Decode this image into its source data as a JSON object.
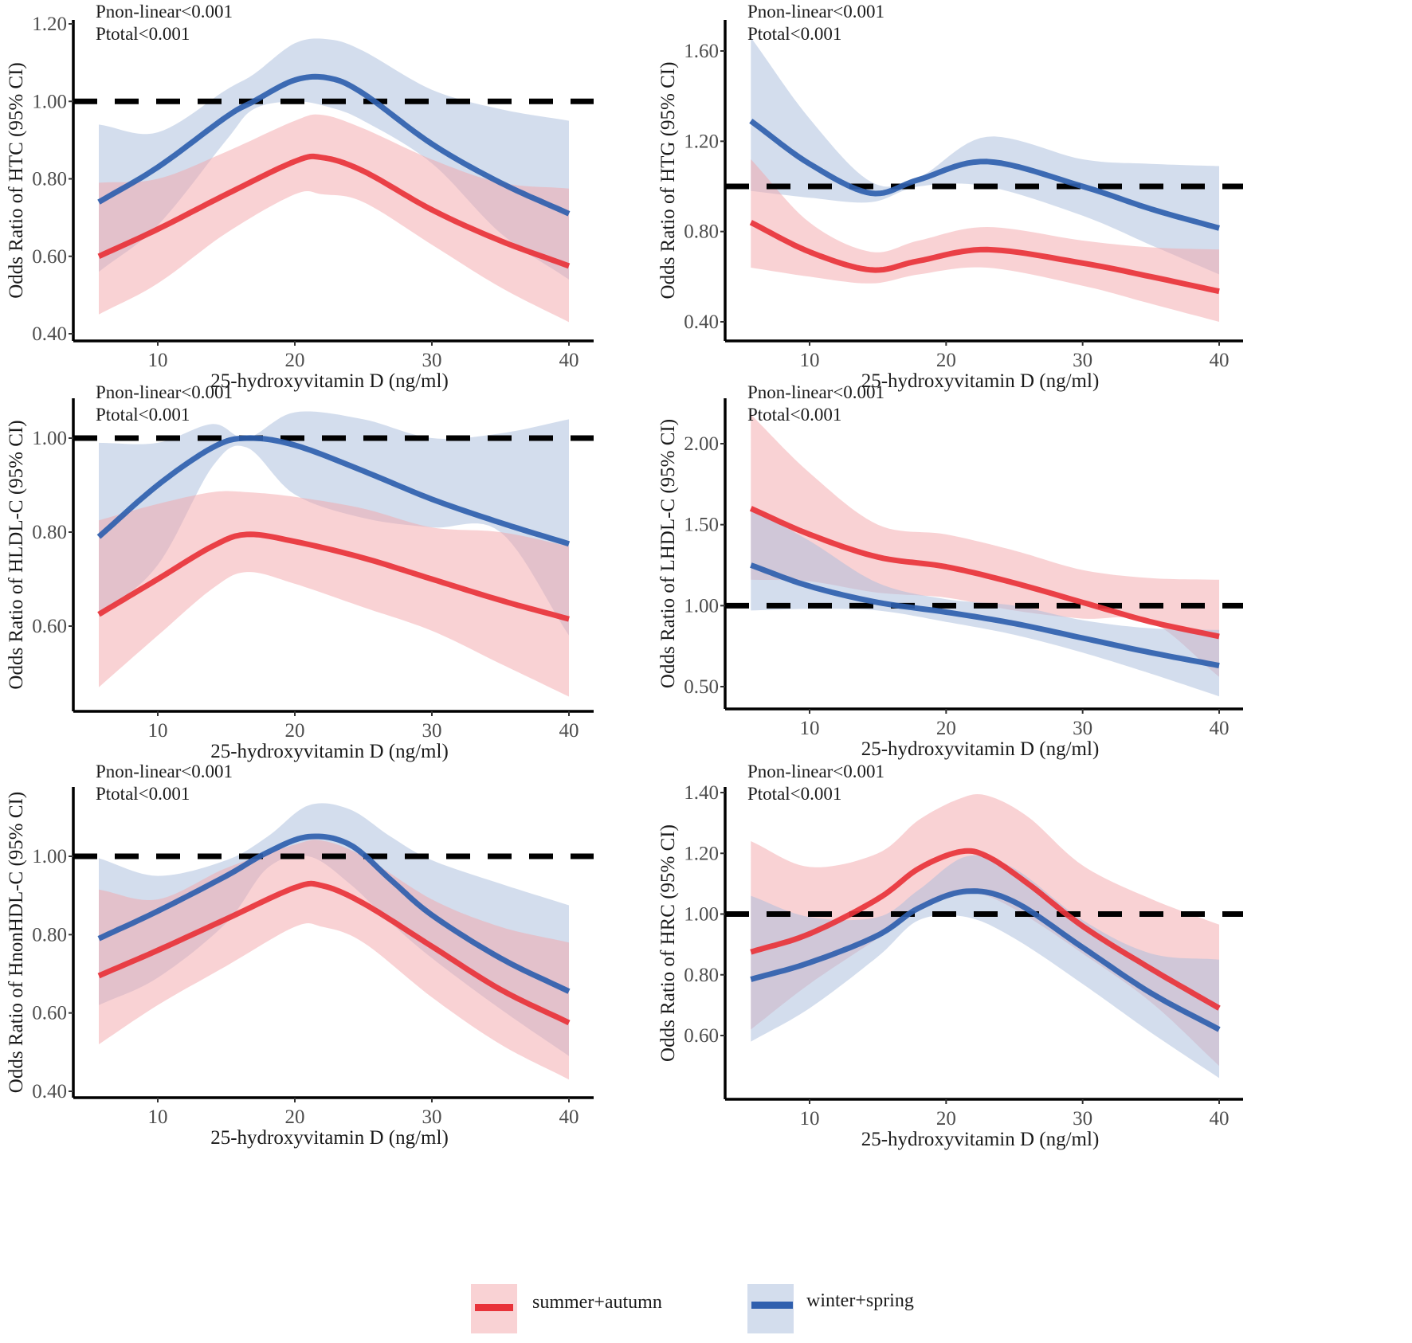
{
  "figure": {
    "legend": [
      {
        "key": "summer_autumn",
        "label": "summer+autumn",
        "line_color": "#e8333a",
        "band_color": "#f4a6aa",
        "band_opacity": 0.5
      },
      {
        "key": "winter_spring",
        "label": "winter+spring",
        "line_color": "#2f5fae",
        "band_color": "#a7bcdc",
        "band_opacity": 0.5
      }
    ]
  },
  "chart_data": [
    {
      "type": "line",
      "panel": "top-left",
      "title": "",
      "annotations": [
        "Pnon-linear<0.001",
        "Ptotal<0.001"
      ],
      "xlabel": "25-hydroxyvitamin D (ng/ml)",
      "ylabel": "Odds Ratio of HTC (95% CI)",
      "xticks": [
        10,
        20,
        30,
        40
      ],
      "yticks": [
        "0.40",
        "0.60",
        "0.80",
        "1.00",
        "1.20"
      ],
      "xlim": [
        4.2,
        41.8
      ],
      "ylim": [
        0.39,
        1.21
      ],
      "reference_line": 1.0,
      "series": [
        {
          "name": "winter+spring",
          "x": [
            5.7,
            10,
            15,
            17,
            20,
            22.5,
            25,
            30,
            35,
            40
          ],
          "y": [
            0.74,
            0.83,
            0.96,
            1.0,
            1.055,
            1.06,
            1.02,
            0.89,
            0.79,
            0.71
          ],
          "lower": [
            0.56,
            0.68,
            0.9,
            0.98,
            1.0,
            0.985,
            0.95,
            0.84,
            0.66,
            0.54
          ],
          "upper": [
            0.94,
            0.92,
            1.03,
            1.07,
            1.15,
            1.16,
            1.13,
            1.03,
            0.98,
            0.95
          ]
        },
        {
          "name": "summer+autumn",
          "x": [
            5.7,
            10,
            15,
            20,
            22,
            25,
            30,
            35,
            40
          ],
          "y": [
            0.6,
            0.67,
            0.76,
            0.845,
            0.855,
            0.82,
            0.72,
            0.64,
            0.575
          ],
          "lower": [
            0.45,
            0.53,
            0.66,
            0.76,
            0.76,
            0.74,
            0.63,
            0.52,
            0.43
          ],
          "upper": [
            0.79,
            0.8,
            0.87,
            0.95,
            0.965,
            0.93,
            0.85,
            0.79,
            0.775
          ]
        }
      ]
    },
    {
      "type": "line",
      "panel": "top-right",
      "title": "",
      "annotations": [
        "Pnon-linear<0.001",
        "Ptotal<0.001"
      ],
      "xlabel": "25-hydroxyvitamin D (ng/ml)",
      "ylabel": "Odds Ratio of HTG (95% CI)",
      "xticks": [
        10,
        20,
        30,
        40
      ],
      "yticks": [
        "0.40",
        "0.80",
        "1.20",
        "1.60"
      ],
      "xlim": [
        4.2,
        41.8
      ],
      "ylim": [
        0.31,
        1.72
      ],
      "reference_line": 1.0,
      "series": [
        {
          "name": "winter+spring",
          "x": [
            5.7,
            10,
            14.5,
            18,
            23,
            30,
            35,
            40
          ],
          "y": [
            1.29,
            1.1,
            0.97,
            1.03,
            1.11,
            1.0,
            0.9,
            0.815
          ],
          "lower": [
            0.98,
            0.95,
            0.93,
            1.0,
            1.0,
            0.87,
            0.74,
            0.61
          ],
          "upper": [
            1.66,
            1.3,
            1.02,
            1.04,
            1.22,
            1.12,
            1.1,
            1.09
          ]
        },
        {
          "name": "summer+autumn",
          "x": [
            5.7,
            10,
            14.5,
            18,
            23,
            30,
            35,
            40
          ],
          "y": [
            0.84,
            0.71,
            0.63,
            0.67,
            0.72,
            0.66,
            0.6,
            0.535
          ],
          "lower": [
            0.64,
            0.6,
            0.57,
            0.61,
            0.64,
            0.56,
            0.48,
            0.4
          ],
          "upper": [
            1.12,
            0.84,
            0.71,
            0.76,
            0.82,
            0.76,
            0.73,
            0.72
          ]
        }
      ]
    },
    {
      "type": "line",
      "panel": "middle-left",
      "title": "",
      "annotations": [
        "Pnon-linear<0.001",
        "Ptotal<0.001"
      ],
      "xlabel": "25-hydroxyvitamin D (ng/ml)",
      "ylabel": "Odds Ratio of HLDL-C (95% CI)",
      "xticks": [
        10,
        20,
        30,
        40
      ],
      "yticks": [
        "0.60",
        "0.80",
        "1.00"
      ],
      "xlim": [
        4.2,
        41.8
      ],
      "ylim": [
        0.42,
        1.085
      ],
      "reference_line": 1.0,
      "series": [
        {
          "name": "winter+spring",
          "x": [
            5.7,
            10,
            14,
            16.5,
            20,
            25,
            30,
            35,
            40
          ],
          "y": [
            0.79,
            0.9,
            0.98,
            1.0,
            0.985,
            0.93,
            0.87,
            0.82,
            0.775
          ],
          "lower": [
            0.62,
            0.73,
            0.94,
            0.98,
            0.88,
            0.83,
            0.81,
            0.8,
            0.58
          ],
          "upper": [
            0.99,
            0.99,
            1.03,
            1.0,
            1.055,
            1.04,
            1.0,
            1.01,
            1.04
          ]
        },
        {
          "name": "summer+autumn",
          "x": [
            5.7,
            10,
            14,
            16.5,
            20,
            25,
            30,
            35,
            40
          ],
          "y": [
            0.625,
            0.7,
            0.77,
            0.795,
            0.78,
            0.745,
            0.7,
            0.655,
            0.615
          ],
          "lower": [
            0.47,
            0.58,
            0.68,
            0.715,
            0.69,
            0.64,
            0.59,
            0.52,
            0.45
          ],
          "upper": [
            0.825,
            0.86,
            0.885,
            0.885,
            0.875,
            0.85,
            0.81,
            0.8,
            0.77
          ]
        }
      ]
    },
    {
      "type": "line",
      "panel": "middle-right",
      "title": "",
      "annotations": [
        "Pnon-linear<0.001",
        "Ptotal<0.001"
      ],
      "xlabel": "25-hydroxyvitamin D (ng/ml)",
      "ylabel": "Odds Ratio of LHDL-C (95% CI)",
      "xticks": [
        10,
        20,
        30,
        40
      ],
      "yticks": [
        "0.50",
        "1.00",
        "1.50",
        "2.00"
      ],
      "xlim": [
        4.2,
        41.8
      ],
      "ylim": [
        0.36,
        2.28
      ],
      "reference_line": 1.0,
      "series": [
        {
          "name": "summer+autumn",
          "x": [
            5.7,
            10,
            15,
            20,
            25,
            30,
            35,
            40
          ],
          "y": [
            1.6,
            1.44,
            1.3,
            1.24,
            1.14,
            1.02,
            0.9,
            0.81
          ],
          "lower": [
            1.16,
            1.15,
            1.08,
            1.05,
            0.97,
            0.92,
            0.9,
            0.56
          ],
          "upper": [
            2.18,
            1.82,
            1.5,
            1.44,
            1.34,
            1.22,
            1.17,
            1.16
          ]
        },
        {
          "name": "winter+spring",
          "x": [
            5.7,
            10,
            15,
            20,
            25,
            30,
            35,
            40
          ],
          "y": [
            1.25,
            1.12,
            1.02,
            0.96,
            0.89,
            0.8,
            0.71,
            0.63
          ],
          "lower": [
            0.97,
            0.98,
            0.97,
            0.9,
            0.82,
            0.71,
            0.58,
            0.44
          ],
          "upper": [
            1.6,
            1.4,
            1.14,
            1.04,
            1.0,
            0.91,
            0.86,
            0.85
          ]
        }
      ]
    },
    {
      "type": "line",
      "panel": "bottom-left",
      "title": "",
      "annotations": [
        "Pnon-linear<0.001",
        "Ptotal<0.001"
      ],
      "xlabel": "25-hydroxyvitamin D (ng/ml)",
      "ylabel": "Odds Ratio of HnonHDL-C (95% CI)",
      "xticks": [
        10,
        20,
        30,
        40
      ],
      "yticks": [
        "0.40",
        "0.60",
        "0.80",
        "1.00"
      ],
      "xlim": [
        4.2,
        41.8
      ],
      "ylim": [
        0.39,
        1.135
      ],
      "reference_line": 1.0,
      "series": [
        {
          "name": "winter+spring",
          "x": [
            5.7,
            10,
            15,
            18,
            21,
            24,
            27,
            30,
            35,
            40
          ],
          "y": [
            0.79,
            0.86,
            0.95,
            1.01,
            1.05,
            1.03,
            0.94,
            0.85,
            0.74,
            0.655
          ],
          "lower": [
            0.62,
            0.69,
            0.83,
            0.97,
            1.0,
            0.93,
            0.83,
            0.74,
            0.61,
            0.49
          ],
          "upper": [
            0.995,
            0.95,
            0.99,
            1.05,
            1.13,
            1.12,
            1.05,
            0.99,
            0.93,
            0.875
          ]
        },
        {
          "name": "summer+autumn",
          "x": [
            5.7,
            10,
            15,
            20,
            22,
            25,
            30,
            35,
            40
          ],
          "y": [
            0.695,
            0.76,
            0.84,
            0.92,
            0.925,
            0.88,
            0.77,
            0.66,
            0.575
          ],
          "lower": [
            0.52,
            0.62,
            0.72,
            0.82,
            0.82,
            0.78,
            0.64,
            0.52,
            0.43
          ],
          "upper": [
            0.915,
            0.89,
            0.97,
            1.03,
            1.04,
            1.0,
            0.89,
            0.82,
            0.78
          ]
        }
      ]
    },
    {
      "type": "line",
      "panel": "bottom-right",
      "title": "",
      "annotations": [
        "Pnon-linear<0.001",
        "Ptotal<0.001"
      ],
      "xlabel": "25-hydroxyvitamin D (ng/ml)",
      "ylabel": "Odds Ratio of HRC (95% CI)",
      "xticks": [
        10,
        20,
        30,
        40
      ],
      "yticks": [
        "0.60",
        "0.80",
        "1.00",
        "1.20",
        "1.40"
      ],
      "xlim": [
        4.2,
        41.8
      ],
      "ylim": [
        0.39,
        1.42
      ],
      "reference_line": 1.0,
      "series": [
        {
          "name": "summer+autumn",
          "x": [
            5.7,
            10,
            15,
            18,
            21,
            23,
            26,
            30,
            35,
            40
          ],
          "y": [
            0.875,
            0.935,
            1.05,
            1.15,
            1.205,
            1.19,
            1.1,
            0.96,
            0.82,
            0.69
          ],
          "lower": [
            0.62,
            0.77,
            0.92,
            1.01,
            1.07,
            1.06,
            0.99,
            0.87,
            0.71,
            0.5
          ],
          "upper": [
            1.24,
            1.155,
            1.2,
            1.31,
            1.38,
            1.39,
            1.32,
            1.16,
            1.05,
            0.965
          ]
        },
        {
          "name": "winter+spring",
          "x": [
            5.7,
            10,
            15,
            18,
            21.5,
            25,
            30,
            35,
            40
          ],
          "y": [
            0.785,
            0.84,
            0.93,
            1.02,
            1.075,
            1.04,
            0.89,
            0.74,
            0.62
          ],
          "lower": [
            0.58,
            0.69,
            0.86,
            0.98,
            0.99,
            0.92,
            0.77,
            0.61,
            0.46
          ],
          "upper": [
            1.06,
            0.99,
            0.99,
            1.08,
            1.19,
            1.15,
            0.98,
            0.87,
            0.85
          ]
        }
      ]
    }
  ]
}
